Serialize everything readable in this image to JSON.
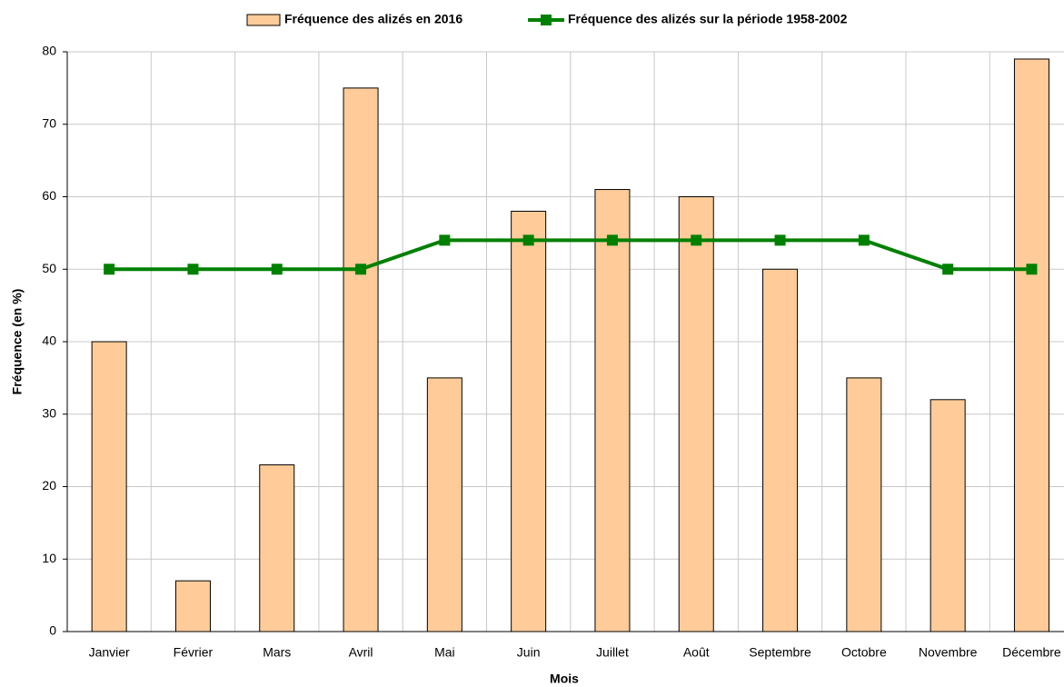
{
  "chart_data": {
    "type": "bar",
    "categories": [
      "Janvier",
      "Février",
      "Mars",
      "Avril",
      "Mai",
      "Juin",
      "Juillet",
      "Août",
      "Septembre",
      "Octobre",
      "Novembre",
      "Décembre"
    ],
    "series": [
      {
        "name": "Fréquence des alizés en 2016",
        "type": "bar",
        "color": "#ffcc99",
        "values": [
          40,
          7,
          23,
          75,
          35,
          58,
          61,
          60,
          50,
          35,
          32,
          79
        ]
      },
      {
        "name": "Fréquence des alizés sur la période 1958-2002",
        "type": "line",
        "color": "#008000",
        "values": [
          50,
          50,
          50,
          50,
          54,
          54,
          54,
          54,
          54,
          54,
          50,
          50
        ]
      }
    ],
    "x_label": "Mois",
    "y_label": "Fréquence (en %)",
    "ylim": [
      0,
      80
    ],
    "yticks": [
      0,
      10,
      20,
      30,
      40,
      50,
      60,
      70,
      80
    ],
    "grid": true,
    "legend": "top"
  }
}
